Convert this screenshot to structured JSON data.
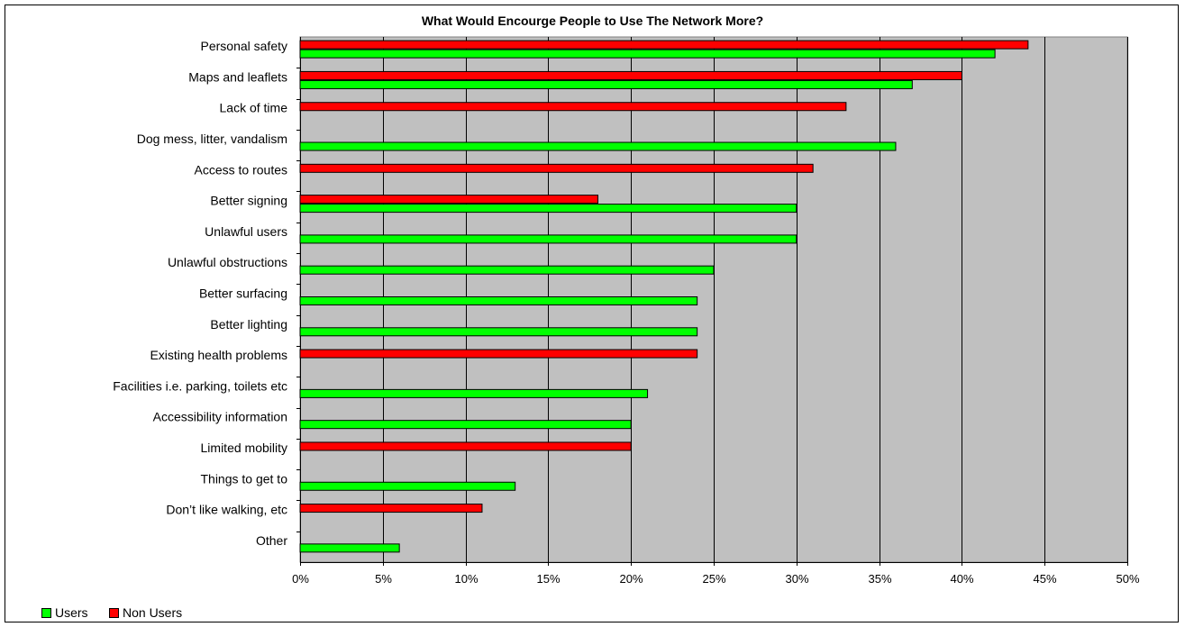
{
  "chart_data": {
    "type": "bar",
    "orientation": "horizontal",
    "title": "What Would Encourge People to Use The Network More?",
    "categories": [
      "Personal safety",
      "Maps and leaflets",
      "Lack of time",
      "Dog mess, litter, vandalism",
      "Access to routes",
      "Better signing",
      "Unlawful users",
      "Unlawful obstructions",
      "Better surfacing",
      "Better lighting",
      "Existing health problems",
      "Facilities i.e. parking, toilets etc",
      "Accessibility information",
      "Limited mobility",
      "Things to get to",
      "Don’t like walking, etc",
      "Other"
    ],
    "series": [
      {
        "name": "Users",
        "color": "#00ff00",
        "values": [
          42,
          37,
          null,
          36,
          null,
          30,
          30,
          25,
          24,
          24,
          null,
          21,
          20,
          null,
          13,
          null,
          6
        ]
      },
      {
        "name": "Non Users",
        "color": "#ff0000",
        "values": [
          44,
          40,
          33,
          null,
          31,
          18,
          null,
          null,
          null,
          null,
          24,
          null,
          null,
          20,
          null,
          11,
          null
        ]
      }
    ],
    "xlim": [
      0,
      50
    ],
    "x_ticks": [
      "0%",
      "5%",
      "10%",
      "15%",
      "20%",
      "25%",
      "30%",
      "35%",
      "40%",
      "45%",
      "50%"
    ],
    "value_unit": "%",
    "grid": true,
    "plot_background": "#c0c0c0",
    "legend_position": "bottom-left"
  }
}
